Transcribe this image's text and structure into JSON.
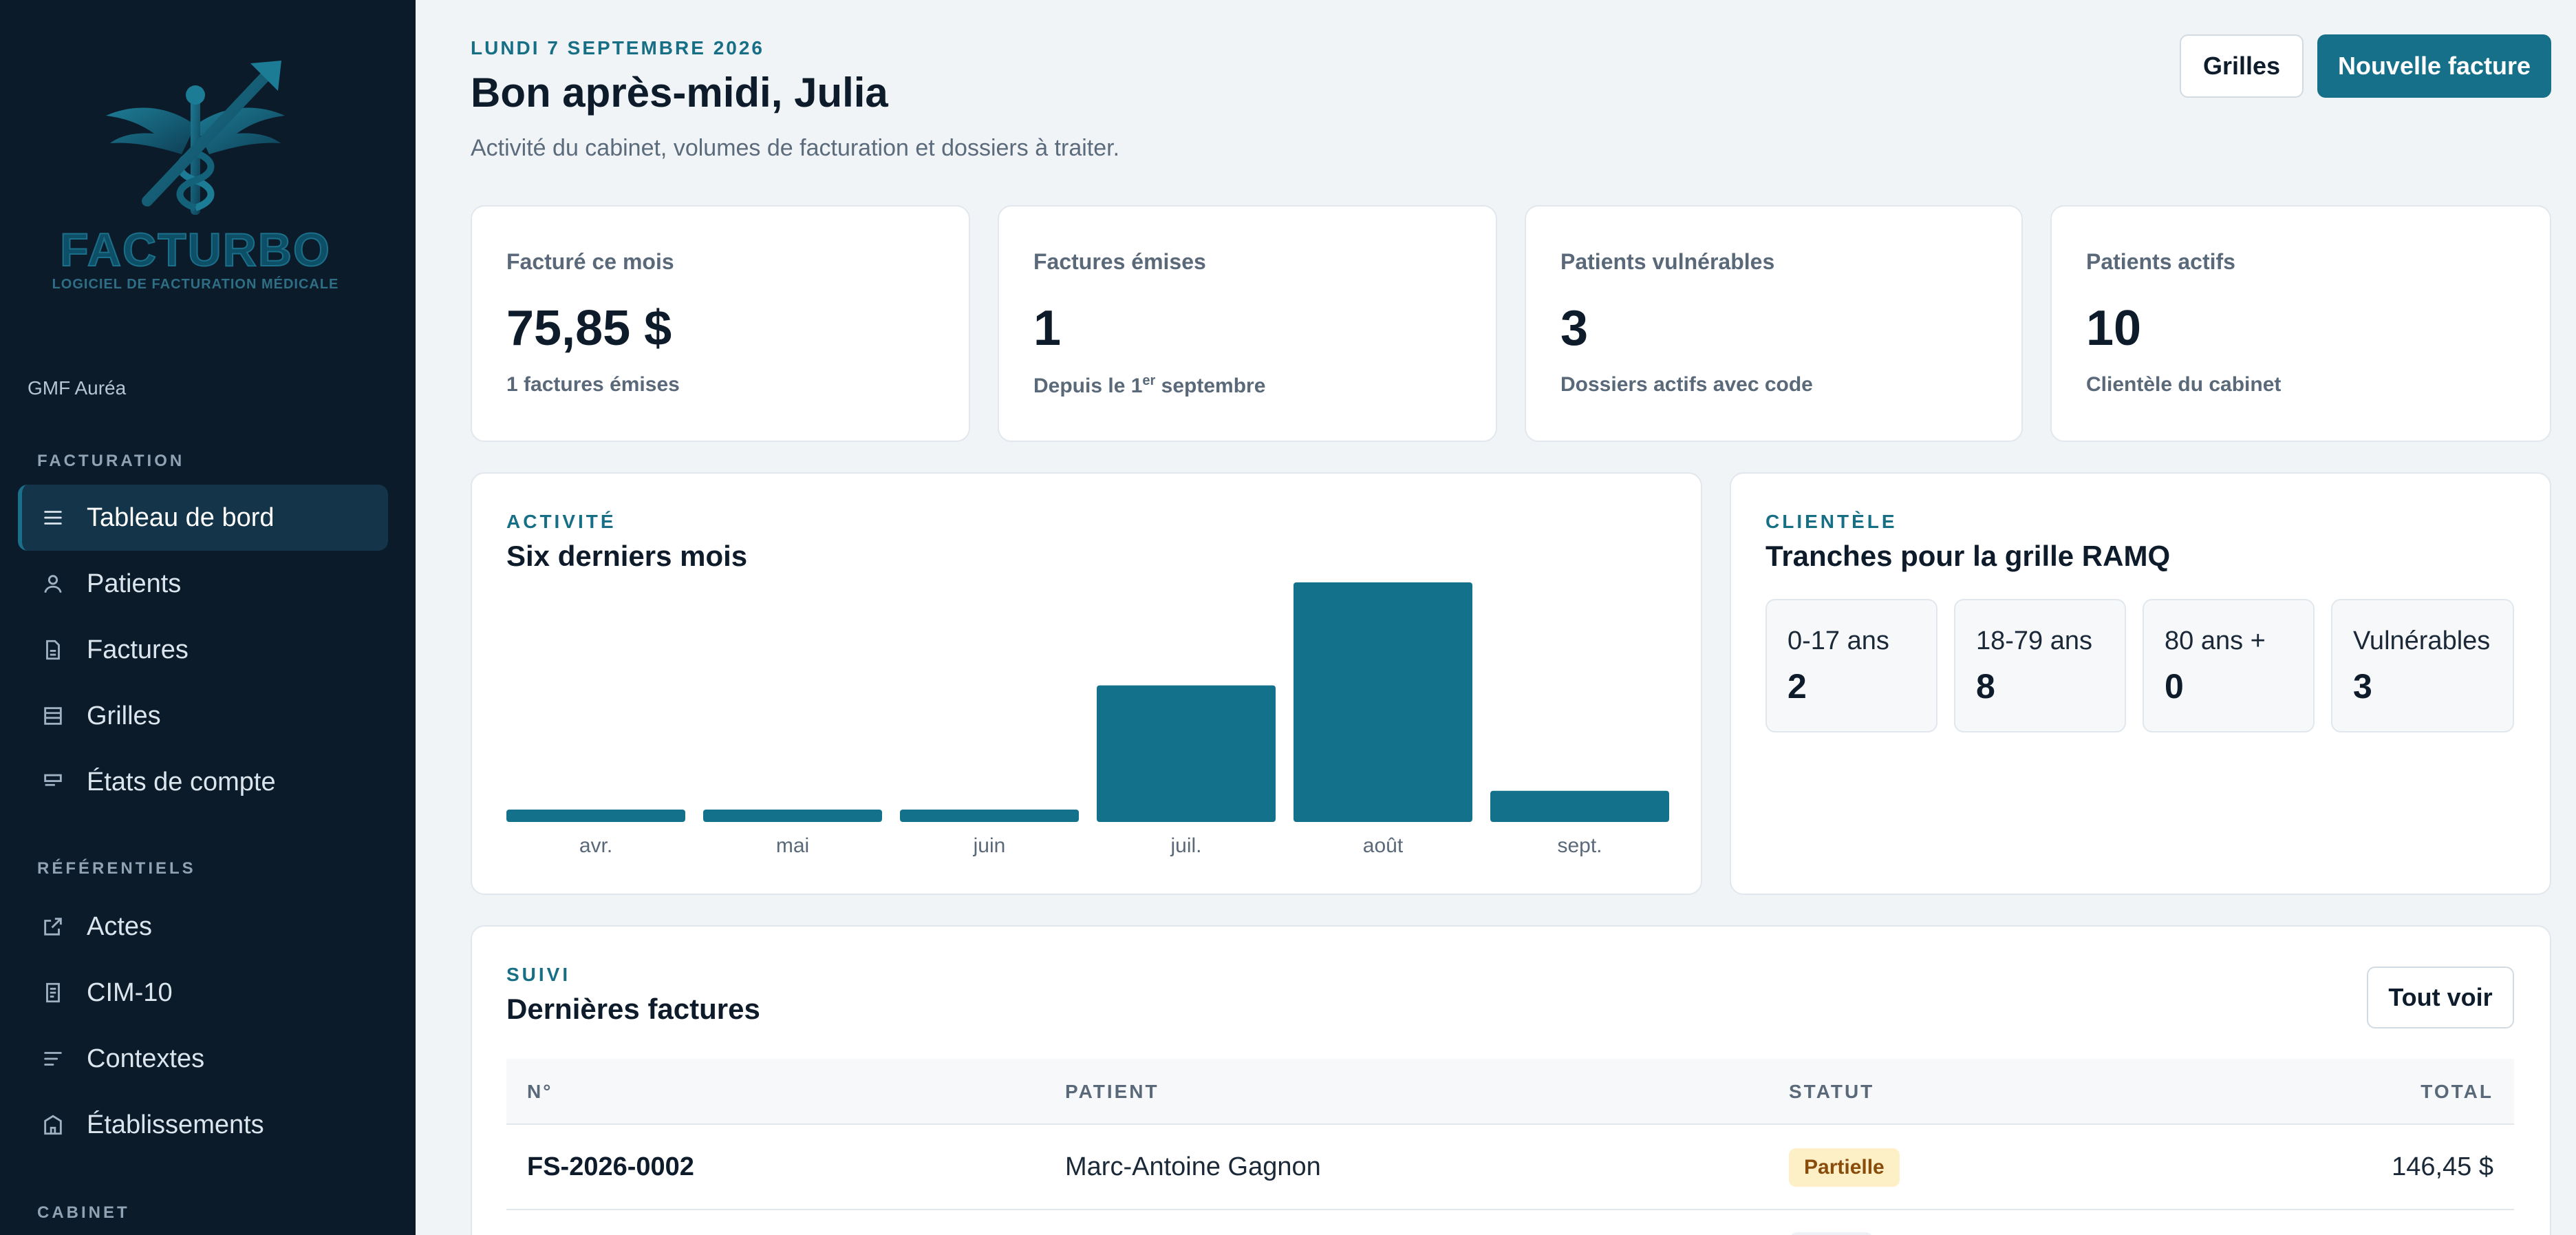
{
  "sidebar": {
    "logo": {
      "word": "FACTURBO",
      "tagline": "LOGICIEL DE FACTURATION MÉDICALE"
    },
    "organization": "GMF Auréa",
    "sections": {
      "billing": "FACTURATION",
      "references": "RÉFÉRENTIELS",
      "cabinet": "CABINET"
    },
    "items": [
      {
        "label": "Tableau de bord",
        "icon": "menu-icon",
        "active": true
      },
      {
        "label": "Patients",
        "icon": "user-icon"
      },
      {
        "label": "Factures",
        "icon": "document-icon"
      },
      {
        "label": "Grilles",
        "icon": "grid-icon"
      },
      {
        "label": "États de compte",
        "icon": "statement-icon"
      },
      {
        "label": "Actes",
        "icon": "external-link-icon"
      },
      {
        "label": "CIM-10",
        "icon": "book-icon"
      },
      {
        "label": "Contextes",
        "icon": "lines-icon"
      },
      {
        "label": "Établissements",
        "icon": "building-icon"
      }
    ]
  },
  "header": {
    "date": "LUNDI 7 SEPTEMBRE 2026",
    "greeting": "Bon après-midi, Julia",
    "subtitle": "Activité du cabinet, volumes de facturation et dossiers à traiter.",
    "grids_button": "Grilles",
    "new_invoice_button": "Nouvelle facture"
  },
  "kpis": [
    {
      "label": "Facturé ce mois",
      "value": "75,85 $",
      "note": "1 factures émises"
    },
    {
      "label": "Factures émises",
      "value": "1",
      "note_prefix": "Depuis le 1",
      "note_sup": "er",
      "note_suffix": " septembre"
    },
    {
      "label": "Patients vulnérables",
      "value": "3",
      "note": "Dossiers actifs avec code"
    },
    {
      "label": "Patients actifs",
      "value": "10",
      "note": "Clientèle du cabinet"
    }
  ],
  "activity": {
    "eyebrow": "ACTIVITÉ",
    "title": "Six derniers mois"
  },
  "chart_data": {
    "type": "bar",
    "categories": [
      "avr.",
      "mai",
      "juin",
      "juil.",
      "août",
      "sept."
    ],
    "values": [
      5,
      5,
      5,
      57,
      100,
      13
    ],
    "title": "Six derniers mois",
    "xlabel": "",
    "ylabel": "",
    "grid": false,
    "color": "#14718c"
  },
  "clientele": {
    "eyebrow": "CLIENTÈLE",
    "title": "Tranches pour la grille RAMQ",
    "tiles": [
      {
        "label": "0-17 ans",
        "value": "2"
      },
      {
        "label": "18-79 ans",
        "value": "8"
      },
      {
        "label": "80 ans +",
        "value": "0"
      },
      {
        "label": "Vulnérables",
        "value": "3"
      }
    ]
  },
  "invoices": {
    "eyebrow": "SUIVI",
    "title": "Dernières factures",
    "see_all": "Tout voir",
    "columns": [
      "N°",
      "PATIENT",
      "STATUT",
      "TOTAL"
    ],
    "rows": [
      {
        "number": "FS-2026-0002",
        "patient": "Marc-Antoine Gagnon",
        "status": "Partielle",
        "total": "146,45 $"
      }
    ]
  },
  "colors": {
    "accent": "#16708a",
    "sidebar_bg": "#0c1b2a",
    "badge_partial_bg": "#fdf0c6",
    "badge_partial_text": "#8a4c0a"
  }
}
